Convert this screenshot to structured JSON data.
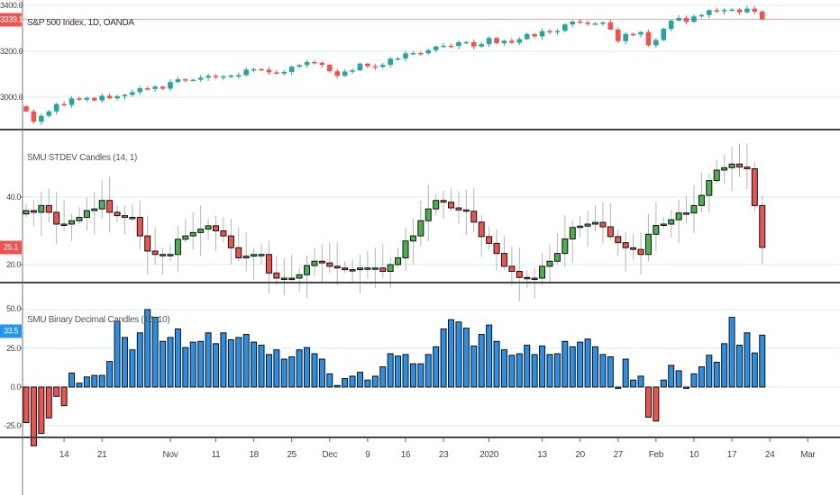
{
  "panels": {
    "main": {
      "title": "S&P 500 Index, 1D, OANDA",
      "last_price": "3339.1",
      "axis_labels": [
        "3400.0",
        "3200.0",
        "3000.0"
      ]
    },
    "stdev": {
      "title": "SMU STDEV Candles (14, 1)",
      "last_value": "25.1",
      "axis_labels": [
        "40.0",
        "20.0"
      ]
    },
    "binary": {
      "title": "SMU Binary Decimal Candles (15, 10)",
      "last_value": "33.5",
      "axis_labels": [
        "50.0",
        "25.0",
        "0.0",
        "-25.0"
      ]
    }
  },
  "time_axis": {
    "labels": [
      "14",
      "21",
      "Nov",
      "11",
      "18",
      "25",
      "Dec",
      "9",
      "16",
      "23",
      "2020",
      "13",
      "20",
      "27",
      "Feb",
      "10",
      "17",
      "24",
      "Mar"
    ]
  },
  "colors": {
    "up": "#26a69a",
    "down": "#ef5350",
    "stdev_up": "#4caf50",
    "stdev_down": "#ef5350",
    "binary_pos": "#2a8fe6",
    "binary_neg": "#ef5350",
    "value_box_blue": "#2196f3",
    "grid": "#d6eff3"
  },
  "chart_data": [
    {
      "type": "candlestick",
      "title": "S&P 500 Index, 1D, OANDA",
      "first_open": 2960,
      "close": [
        2938,
        2893,
        2919,
        2938,
        2970,
        2966,
        2995,
        2989,
        2997,
        2986,
        3006,
        2995,
        3004,
        3010,
        3022,
        3039,
        3036,
        3046,
        3037,
        3066,
        3078,
        3074,
        3076,
        3085,
        3093,
        3087,
        3091,
        3094,
        3096,
        3120,
        3122,
        3120,
        3108,
        3103,
        3110,
        3133,
        3140,
        3153,
        3150,
        3141,
        3113,
        3093,
        3112,
        3117,
        3146,
        3135,
        3132,
        3141,
        3168,
        3169,
        3191,
        3192,
        3191,
        3205,
        3221,
        3224,
        3223,
        3240,
        3240,
        3221,
        3231,
        3258,
        3235,
        3246,
        3237,
        3253,
        3275,
        3265,
        3288,
        3283,
        3289,
        3317,
        3330,
        3325,
        3321,
        3321,
        3326,
        3295,
        3244,
        3276,
        3273,
        3284,
        3226,
        3249,
        3298,
        3334,
        3345,
        3328,
        3352,
        3358,
        3379,
        3374,
        3380,
        3382,
        3370,
        3386,
        3373,
        3339.1
      ],
      "yticks": [
        3400,
        3200,
        3000
      ],
      "last_value": 3339.1,
      "grid": true
    },
    {
      "type": "candlestick",
      "title": "SMU STDEV Candles (14, 1)",
      "first_open": 35,
      "close": [
        36,
        35.5,
        37.5,
        35.5,
        32,
        32,
        33,
        34,
        36,
        36.5,
        39,
        35.5,
        34.5,
        34,
        34,
        28.5,
        24,
        23,
        23,
        23,
        27.5,
        28.5,
        29.5,
        30.5,
        31.5,
        30,
        28.5,
        25,
        22,
        22.5,
        23,
        23,
        17.5,
        16,
        16,
        16,
        17,
        19.7,
        21,
        20.5,
        19.5,
        19,
        18.5,
        18.5,
        19,
        19,
        19,
        18,
        20,
        22,
        27,
        28.5,
        33,
        36.5,
        39,
        38.5,
        36.8,
        36.2,
        35.8,
        32.6,
        28.3,
        26.3,
        23.3,
        19.5,
        18,
        16.2,
        16,
        16,
        19.5,
        21,
        23.3,
        27.6,
        31,
        31.4,
        32,
        32.5,
        31.2,
        28.3,
        26.5,
        25,
        24.5,
        23,
        29,
        31.6,
        32,
        33.3,
        35.3,
        35.3,
        37.5,
        40.5,
        44.9,
        48,
        48.7,
        49.8,
        48.9,
        48.4,
        37.5,
        25.1
      ],
      "yticks": [
        40,
        20
      ],
      "last_value": 25.1,
      "grid": true
    },
    {
      "type": "bar",
      "title": "SMU Binary Decimal Candles (15, 10)",
      "values": [
        -23,
        -38,
        -30,
        -20,
        -6,
        -12,
        9,
        2.5,
        6.5,
        7.5,
        7.5,
        16.5,
        42.5,
        32,
        24,
        35,
        50,
        45,
        29.5,
        32,
        37.5,
        25.5,
        29,
        29.5,
        35,
        28,
        35,
        30.5,
        32,
        34,
        29,
        27,
        21,
        24,
        18,
        19.5,
        24,
        25.5,
        21.5,
        18,
        8.5,
        1,
        5.5,
        7,
        9.5,
        4.5,
        7,
        13,
        21.5,
        20,
        21,
        15,
        15,
        21,
        26,
        37.5,
        43.5,
        42,
        38,
        26.5,
        34,
        40,
        29.5,
        24,
        20.5,
        21.5,
        27,
        21,
        26.5,
        21,
        21.5,
        29.5,
        26,
        29,
        31,
        26,
        21,
        19.5,
        0,
        18,
        4.5,
        7,
        -19.5,
        -22,
        4.5,
        14,
        10.5,
        0,
        8.5,
        13,
        20.5,
        16,
        28,
        45,
        27,
        35,
        22,
        33.5
      ],
      "yticks": [
        50,
        25,
        0,
        -25
      ],
      "last_value": 33.5,
      "grid": true
    }
  ]
}
